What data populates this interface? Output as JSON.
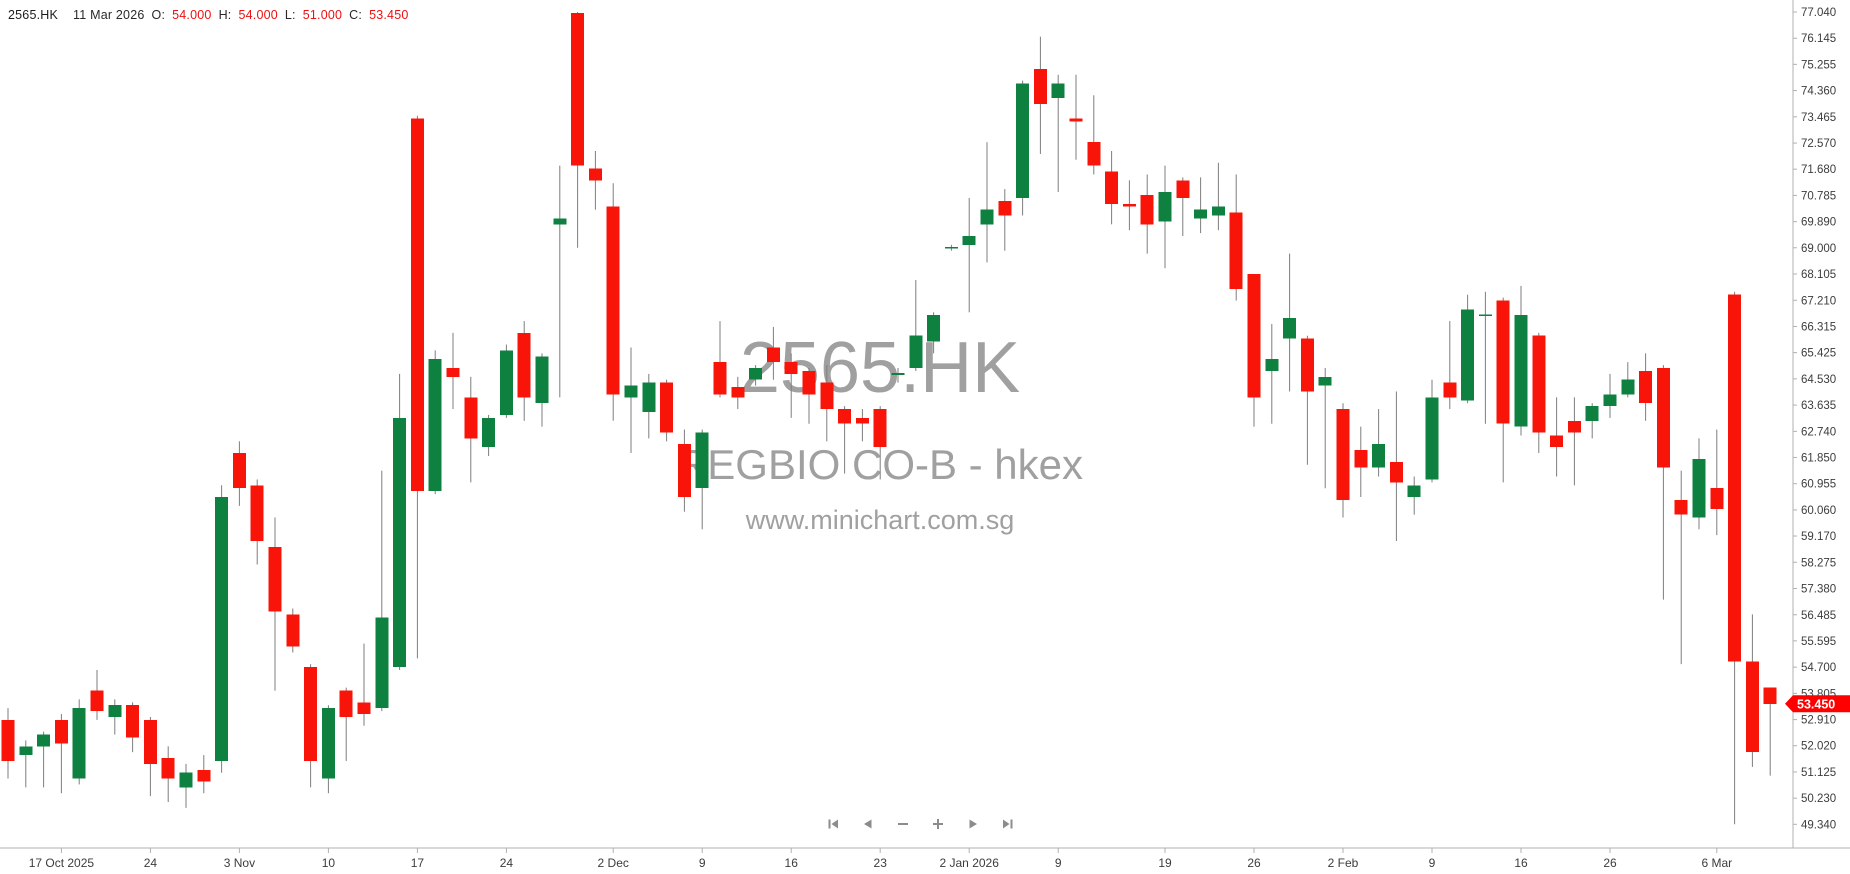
{
  "header": {
    "symbol": "2565.HK",
    "date": "11 Mar 2026",
    "open_label": "O:",
    "open_value": "54.000",
    "high_label": "H:",
    "high_value": "54.000",
    "low_label": "L:",
    "low_value": "51.000",
    "close_label": "C:",
    "close_value": "53.450"
  },
  "watermark": {
    "symbol": "2565.HK",
    "name": "REGBIO CO-B - hkex",
    "site": "www.minichart.com.sg"
  },
  "price_tag": {
    "value": "53.450"
  },
  "toolbar": {
    "buttons": [
      {
        "name": "skip-to-start-icon"
      },
      {
        "name": "step-back-icon"
      },
      {
        "name": "zoom-out-icon"
      },
      {
        "name": "zoom-in-icon"
      },
      {
        "name": "step-forward-icon"
      },
      {
        "name": "skip-to-end-icon"
      }
    ]
  },
  "colors": {
    "up": "#0e8040",
    "down": "#f91409",
    "wick": "#7d7d7d",
    "axis_line": "#b0b0b0",
    "axis_text": "#3c3c3c",
    "header_text": "#1c1c1c",
    "header_values": "#ee1111",
    "watermark": "#a0a0a0",
    "tag_bg": "#ff0000",
    "tag_text": "#ffffff",
    "nav_icon": "#8c8c8c"
  },
  "chart_data": {
    "type": "candlestick",
    "title": "2565.HK REGBIO CO-B - hkex",
    "ylim": [
      49.34,
      77.04
    ],
    "grid": false,
    "legend": "none",
    "y_axis_labels": [
      "77.040",
      "76.145",
      "75.255",
      "74.360",
      "73.465",
      "72.570",
      "71.680",
      "70.785",
      "69.890",
      "69.000",
      "68.105",
      "67.210",
      "66.315",
      "65.425",
      "64.530",
      "63.635",
      "62.740",
      "61.850",
      "60.955",
      "60.060",
      "59.170",
      "58.275",
      "57.380",
      "56.485",
      "55.595",
      "54.700",
      "53.805",
      "52.910",
      "52.020",
      "51.125",
      "50.230",
      "49.340"
    ],
    "x_ticks": [
      {
        "label": "17 Oct 2025",
        "i": 3
      },
      {
        "label": "24",
        "i": 8
      },
      {
        "label": "3 Nov",
        "i": 13
      },
      {
        "label": "10",
        "i": 18
      },
      {
        "label": "17",
        "i": 23
      },
      {
        "label": "24",
        "i": 28
      },
      {
        "label": "2 Dec",
        "i": 34
      },
      {
        "label": "9",
        "i": 39
      },
      {
        "label": "16",
        "i": 44
      },
      {
        "label": "23",
        "i": 49
      },
      {
        "label": "2 Jan 2026",
        "i": 54
      },
      {
        "label": "9",
        "i": 59
      },
      {
        "label": "19",
        "i": 65
      },
      {
        "label": "26",
        "i": 70
      },
      {
        "label": "2 Feb",
        "i": 75
      },
      {
        "label": "9",
        "i": 80
      },
      {
        "label": "16",
        "i": 85
      },
      {
        "label": "26",
        "i": 90
      },
      {
        "label": "6 Mar",
        "i": 96
      }
    ],
    "last_price": 53.45,
    "candles": [
      [
        52.9,
        53.3,
        50.9,
        51.5
      ],
      [
        51.7,
        52.2,
        50.6,
        52.0
      ],
      [
        52.0,
        52.5,
        50.6,
        52.4
      ],
      [
        52.9,
        53.1,
        50.4,
        52.1
      ],
      [
        50.9,
        53.6,
        50.7,
        53.3
      ],
      [
        53.9,
        54.6,
        52.9,
        53.2
      ],
      [
        53.0,
        53.6,
        52.4,
        53.4
      ],
      [
        53.4,
        53.5,
        51.8,
        52.3
      ],
      [
        52.9,
        53.0,
        50.3,
        51.4
      ],
      [
        51.6,
        52.0,
        50.1,
        50.9
      ],
      [
        50.6,
        51.4,
        49.9,
        51.1
      ],
      [
        51.2,
        51.7,
        50.4,
        50.8
      ],
      [
        51.5,
        60.9,
        51.1,
        60.5
      ],
      [
        62.0,
        62.4,
        60.2,
        60.8
      ],
      [
        60.9,
        61.1,
        58.2,
        59.0
      ],
      [
        58.8,
        59.8,
        53.9,
        56.6
      ],
      [
        56.5,
        56.7,
        55.2,
        55.4
      ],
      [
        54.7,
        54.8,
        50.6,
        51.5
      ],
      [
        50.9,
        53.4,
        50.4,
        53.3
      ],
      [
        53.9,
        54.0,
        51.5,
        53.0
      ],
      [
        53.5,
        55.5,
        52.7,
        53.1
      ],
      [
        53.3,
        61.4,
        53.2,
        56.4
      ],
      [
        54.7,
        64.7,
        54.6,
        63.2
      ],
      [
        73.4,
        73.5,
        55.0,
        60.7
      ],
      [
        60.7,
        65.5,
        60.6,
        65.2
      ],
      [
        64.9,
        66.1,
        63.5,
        64.6
      ],
      [
        63.9,
        64.6,
        61.0,
        62.5
      ],
      [
        62.2,
        63.3,
        61.9,
        63.2
      ],
      [
        63.3,
        65.7,
        63.2,
        65.5
      ],
      [
        66.1,
        66.5,
        63.1,
        63.9
      ],
      [
        63.7,
        65.4,
        62.9,
        65.3
      ],
      [
        69.8,
        71.8,
        63.9,
        70.0
      ],
      [
        77.0,
        77.04,
        69.0,
        71.8
      ],
      [
        71.7,
        72.3,
        70.3,
        71.3
      ],
      [
        70.4,
        71.2,
        63.1,
        64.0
      ],
      [
        63.9,
        65.6,
        62.0,
        64.3
      ],
      [
        63.4,
        64.7,
        62.5,
        64.4
      ],
      [
        64.4,
        64.5,
        62.4,
        62.7
      ],
      [
        62.3,
        62.8,
        60.0,
        60.5
      ],
      [
        60.8,
        62.8,
        59.4,
        62.7
      ],
      [
        65.1,
        66.5,
        63.9,
        64.0
      ],
      [
        64.25,
        64.6,
        63.5,
        63.9
      ],
      [
        64.5,
        65.0,
        64.3,
        64.9
      ],
      [
        65.6,
        66.3,
        64.5,
        65.1
      ],
      [
        65.1,
        65.4,
        63.2,
        64.7
      ],
      [
        64.8,
        64.9,
        63.0,
        64.0
      ],
      [
        64.4,
        65.0,
        62.4,
        63.5
      ],
      [
        63.5,
        63.6,
        61.3,
        63.0
      ],
      [
        63.2,
        63.5,
        62.4,
        63.0
      ],
      [
        63.5,
        63.6,
        61.1,
        62.2
      ],
      [
        64.7,
        64.9,
        64.4,
        64.7
      ],
      [
        64.9,
        67.9,
        64.8,
        66.0
      ],
      [
        65.8,
        66.8,
        65.4,
        66.7
      ],
      [
        69.0,
        69.1,
        68.9,
        69.0
      ],
      [
        69.1,
        70.7,
        66.8,
        69.4
      ],
      [
        69.8,
        72.6,
        68.5,
        70.3
      ],
      [
        70.6,
        71.0,
        68.9,
        70.1
      ],
      [
        70.7,
        74.7,
        70.1,
        74.6
      ],
      [
        75.1,
        76.2,
        72.2,
        73.9
      ],
      [
        74.1,
        74.9,
        70.9,
        74.6
      ],
      [
        73.4,
        74.9,
        72.0,
        73.3
      ],
      [
        72.6,
        74.2,
        71.5,
        71.8
      ],
      [
        71.6,
        72.3,
        69.8,
        70.5
      ],
      [
        70.5,
        71.3,
        69.6,
        70.4
      ],
      [
        70.8,
        71.5,
        68.8,
        69.8
      ],
      [
        69.9,
        71.8,
        68.3,
        70.9
      ],
      [
        71.3,
        71.4,
        69.4,
        70.7
      ],
      [
        70.0,
        71.4,
        69.5,
        70.3
      ],
      [
        70.1,
        71.9,
        69.6,
        70.4
      ],
      [
        70.2,
        71.5,
        67.2,
        67.6
      ],
      [
        68.1,
        68.1,
        62.9,
        63.9
      ],
      [
        64.8,
        66.4,
        63.0,
        65.2
      ],
      [
        65.9,
        68.8,
        64.1,
        66.6
      ],
      [
        65.9,
        66.0,
        61.6,
        64.1
      ],
      [
        64.3,
        64.9,
        60.8,
        64.6
      ],
      [
        63.5,
        63.7,
        59.8,
        60.4
      ],
      [
        62.1,
        62.9,
        60.5,
        61.5
      ],
      [
        61.5,
        63.5,
        61.2,
        62.3
      ],
      [
        61.7,
        64.1,
        59.0,
        61.0
      ],
      [
        60.5,
        61.2,
        59.9,
        60.9
      ],
      [
        61.1,
        64.5,
        61.0,
        63.9
      ],
      [
        64.4,
        66.5,
        63.5,
        63.9
      ],
      [
        63.8,
        67.4,
        63.7,
        66.9
      ],
      [
        66.7,
        67.5,
        63.0,
        66.7
      ],
      [
        67.2,
        67.3,
        61.0,
        63.0
      ],
      [
        62.9,
        67.7,
        62.6,
        66.7
      ],
      [
        66.0,
        66.1,
        62.0,
        62.7
      ],
      [
        62.6,
        63.9,
        61.2,
        62.2
      ],
      [
        63.1,
        63.9,
        60.9,
        62.7
      ],
      [
        63.1,
        63.7,
        62.5,
        63.6
      ],
      [
        63.6,
        64.7,
        63.2,
        64.0
      ],
      [
        64.0,
        65.1,
        63.9,
        64.5
      ],
      [
        64.8,
        65.4,
        63.1,
        63.7
      ],
      [
        64.9,
        65.0,
        57.0,
        61.5
      ],
      [
        60.4,
        61.4,
        54.8,
        59.9
      ],
      [
        59.8,
        62.5,
        59.4,
        61.8
      ],
      [
        60.8,
        62.8,
        59.2,
        60.1
      ],
      [
        67.4,
        67.5,
        49.34,
        54.9
      ],
      [
        54.9,
        56.5,
        51.3,
        51.8
      ],
      [
        54.0,
        54.0,
        51.0,
        53.45
      ]
    ]
  }
}
